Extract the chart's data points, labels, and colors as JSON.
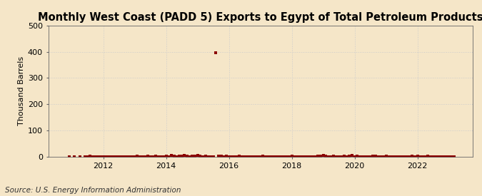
{
  "title": "Monthly West Coast (PADD 5) Exports to Egypt of Total Petroleum Products",
  "ylabel": "Thousand Barrels",
  "source": "Source: U.S. Energy Information Administration",
  "background_color": "#f5e6c8",
  "plot_background_color": "#f5e6c8",
  "ylim": [
    0,
    500
  ],
  "yticks": [
    0,
    100,
    200,
    300,
    400,
    500
  ],
  "xstart": 2010.25,
  "xend": 2023.75,
  "xticks": [
    2012,
    2014,
    2016,
    2018,
    2020,
    2022
  ],
  "marker_color": "#8b0000",
  "grid_color": "#cccccc",
  "title_fontsize": 10.5,
  "label_fontsize": 8,
  "tick_fontsize": 8,
  "source_fontsize": 7.5,
  "data_points": [
    [
      2010.917,
      0
    ],
    [
      2011.083,
      0
    ],
    [
      2011.25,
      0
    ],
    [
      2011.417,
      0
    ],
    [
      2011.5,
      0
    ],
    [
      2011.583,
      3
    ],
    [
      2011.667,
      0
    ],
    [
      2011.75,
      0
    ],
    [
      2011.833,
      0
    ],
    [
      2011.917,
      0
    ],
    [
      2012.0,
      0
    ],
    [
      2012.083,
      0
    ],
    [
      2012.167,
      0
    ],
    [
      2012.25,
      0
    ],
    [
      2012.333,
      0
    ],
    [
      2012.417,
      0
    ],
    [
      2012.5,
      0
    ],
    [
      2012.583,
      0
    ],
    [
      2012.667,
      0
    ],
    [
      2012.75,
      0
    ],
    [
      2012.833,
      0
    ],
    [
      2012.917,
      0
    ],
    [
      2013.0,
      0
    ],
    [
      2013.083,
      2
    ],
    [
      2013.167,
      0
    ],
    [
      2013.25,
      0
    ],
    [
      2013.333,
      0
    ],
    [
      2013.417,
      4
    ],
    [
      2013.5,
      0
    ],
    [
      2013.583,
      0
    ],
    [
      2013.667,
      2
    ],
    [
      2013.75,
      0
    ],
    [
      2013.833,
      0
    ],
    [
      2013.917,
      0
    ],
    [
      2014.0,
      3
    ],
    [
      2014.083,
      0
    ],
    [
      2014.167,
      5
    ],
    [
      2014.25,
      3
    ],
    [
      2014.333,
      0
    ],
    [
      2014.417,
      4
    ],
    [
      2014.5,
      2
    ],
    [
      2014.583,
      5
    ],
    [
      2014.667,
      3
    ],
    [
      2014.75,
      0
    ],
    [
      2014.833,
      4
    ],
    [
      2014.917,
      3
    ],
    [
      2015.0,
      5
    ],
    [
      2015.083,
      2
    ],
    [
      2015.167,
      0
    ],
    [
      2015.25,
      3
    ],
    [
      2015.333,
      0
    ],
    [
      2015.417,
      0
    ],
    [
      2015.5,
      0
    ],
    [
      2015.583,
      395
    ],
    [
      2015.667,
      4
    ],
    [
      2015.75,
      3
    ],
    [
      2015.833,
      0
    ],
    [
      2015.917,
      2
    ],
    [
      2016.0,
      0
    ],
    [
      2016.083,
      0
    ],
    [
      2016.167,
      0
    ],
    [
      2016.25,
      0
    ],
    [
      2016.333,
      3
    ],
    [
      2016.417,
      0
    ],
    [
      2016.5,
      0
    ],
    [
      2016.583,
      0
    ],
    [
      2016.667,
      0
    ],
    [
      2016.75,
      0
    ],
    [
      2016.833,
      0
    ],
    [
      2016.917,
      0
    ],
    [
      2017.0,
      0
    ],
    [
      2017.083,
      3
    ],
    [
      2017.167,
      0
    ],
    [
      2017.25,
      0
    ],
    [
      2017.333,
      0
    ],
    [
      2017.417,
      0
    ],
    [
      2017.5,
      0
    ],
    [
      2017.583,
      0
    ],
    [
      2017.667,
      0
    ],
    [
      2017.75,
      0
    ],
    [
      2017.833,
      0
    ],
    [
      2017.917,
      0
    ],
    [
      2018.0,
      3
    ],
    [
      2018.083,
      0
    ],
    [
      2018.167,
      0
    ],
    [
      2018.25,
      0
    ],
    [
      2018.333,
      0
    ],
    [
      2018.417,
      0
    ],
    [
      2018.5,
      0
    ],
    [
      2018.583,
      0
    ],
    [
      2018.667,
      0
    ],
    [
      2018.75,
      0
    ],
    [
      2018.833,
      4
    ],
    [
      2018.917,
      3
    ],
    [
      2019.0,
      5
    ],
    [
      2019.083,
      4
    ],
    [
      2019.167,
      0
    ],
    [
      2019.25,
      0
    ],
    [
      2019.333,
      3
    ],
    [
      2019.417,
      0
    ],
    [
      2019.5,
      0
    ],
    [
      2019.583,
      0
    ],
    [
      2019.667,
      3
    ],
    [
      2019.75,
      0
    ],
    [
      2019.833,
      4
    ],
    [
      2019.917,
      5
    ],
    [
      2020.0,
      0
    ],
    [
      2020.083,
      3
    ],
    [
      2020.167,
      0
    ],
    [
      2020.25,
      0
    ],
    [
      2020.333,
      0
    ],
    [
      2020.417,
      0
    ],
    [
      2020.5,
      0
    ],
    [
      2020.583,
      4
    ],
    [
      2020.667,
      3
    ],
    [
      2020.75,
      0
    ],
    [
      2020.833,
      0
    ],
    [
      2020.917,
      0
    ],
    [
      2021.0,
      3
    ],
    [
      2021.083,
      0
    ],
    [
      2021.167,
      0
    ],
    [
      2021.25,
      0
    ],
    [
      2021.333,
      0
    ],
    [
      2021.417,
      0
    ],
    [
      2021.5,
      0
    ],
    [
      2021.583,
      0
    ],
    [
      2021.667,
      0
    ],
    [
      2021.75,
      0
    ],
    [
      2021.833,
      3
    ],
    [
      2021.917,
      0
    ],
    [
      2022.0,
      4
    ],
    [
      2022.083,
      0
    ],
    [
      2022.167,
      0
    ],
    [
      2022.25,
      0
    ],
    [
      2022.333,
      3
    ],
    [
      2022.417,
      0
    ],
    [
      2022.5,
      0
    ],
    [
      2022.583,
      0
    ],
    [
      2022.667,
      0
    ],
    [
      2022.75,
      0
    ],
    [
      2022.833,
      0
    ],
    [
      2022.917,
      0
    ],
    [
      2023.0,
      0
    ],
    [
      2023.083,
      0
    ],
    [
      2023.167,
      0
    ]
  ]
}
